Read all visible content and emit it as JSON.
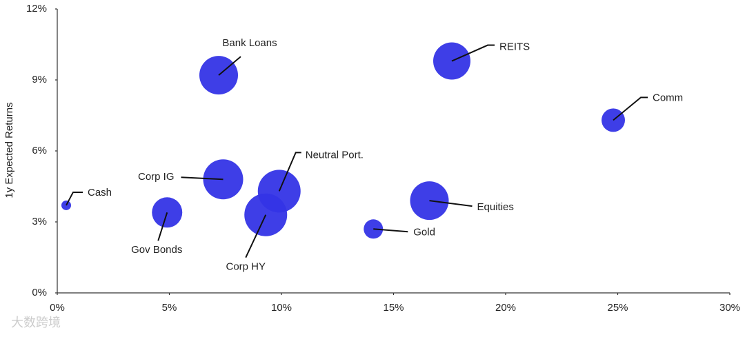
{
  "chart_data": {
    "type": "bubble",
    "y_label": "1y Expected Returns",
    "watermark": "大数跨境",
    "labels": [
      "Cash",
      "Gov Bonds",
      "Corp IG",
      "Bank Loans",
      "Corp HY",
      "Neutral Port.",
      "Gold",
      "Equities",
      "REITS",
      "Comm"
    ],
    "x": [
      0.4,
      4.9,
      7.4,
      7.2,
      9.3,
      9.9,
      14.1,
      16.6,
      17.6,
      24.8
    ],
    "y": [
      3.7,
      3.4,
      4.8,
      9.2,
      3.3,
      4.3,
      2.7,
      3.9,
      9.8,
      7.3
    ],
    "sizes": [
      7,
      22,
      29,
      28,
      31,
      31,
      14,
      28,
      27,
      17
    ],
    "color": "#3434e6",
    "xlim": [
      0,
      30
    ],
    "ylim": [
      0,
      12
    ],
    "xticks": [
      {
        "value": 0,
        "label": "0%"
      },
      {
        "value": 5,
        "label": "5%"
      },
      {
        "value": 10,
        "label": "10%"
      },
      {
        "value": 15,
        "label": "15%"
      },
      {
        "value": 20,
        "label": "20%"
      },
      {
        "value": 25,
        "label": "25%"
      },
      {
        "value": 30,
        "label": "30%"
      }
    ],
    "yticks": [
      {
        "value": 0,
        "label": "0%"
      },
      {
        "value": 3,
        "label": "3%"
      },
      {
        "value": 6,
        "label": "6%"
      },
      {
        "value": 9,
        "label": "9%"
      },
      {
        "value": 12,
        "label": "12%"
      }
    ],
    "grid": false
  }
}
